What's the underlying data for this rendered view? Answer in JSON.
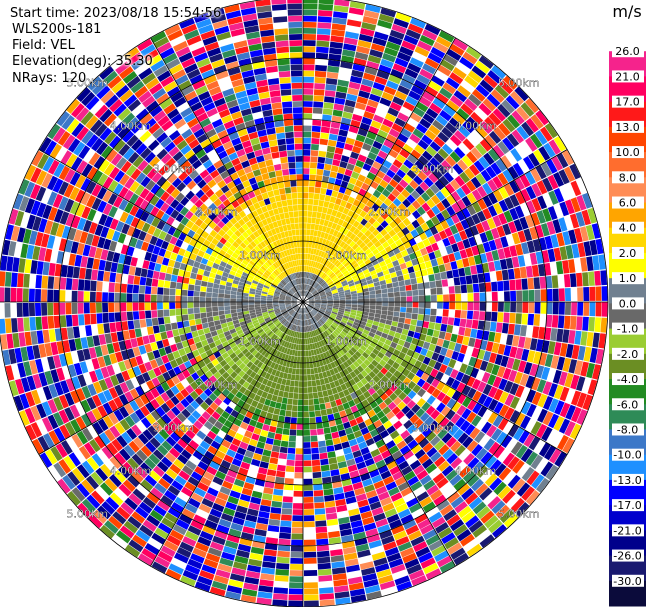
{
  "header": {
    "start_time": "Start time: 2023/08/18 15:54:56",
    "instrument": "WLS200s-181",
    "field": "Field: VEL",
    "elevation": "Elevation(deg): 35.30",
    "nrays": "NRays: 120"
  },
  "chart_data": {
    "type": "ppi",
    "field": "VEL",
    "nrays": 120,
    "max_range_km": 5.0,
    "range_rings_km": [
      1.0,
      2.0,
      3.0,
      4.0,
      5.0
    ],
    "ring_labels": [
      "1.00km",
      "2.00km",
      "3.00km",
      "4.00km",
      "5.00km"
    ],
    "spokes_deg": [
      0,
      30,
      60,
      90,
      120,
      150,
      180,
      210,
      240,
      270,
      300,
      330
    ],
    "qualitative_pattern": {
      "north_near_range": "positive (yellow/orange, ~1 to 6 m/s)",
      "south_near_range": "negative (green, ~-1 to -8 m/s)",
      "center": "near zero (grey)",
      "far_range": "noise (random colors)"
    },
    "colorbar": {
      "unit": "m/s",
      "tick_labels": [
        "26.0",
        "21.0",
        "17.0",
        "13.0",
        "10.0",
        "8.0",
        "6.0",
        "4.0",
        "2.0",
        "1.0",
        "0.0",
        "-1.0",
        "-2.0",
        "-4.0",
        "-6.0",
        "-8.0",
        "-10.0",
        "-13.0",
        "-17.0",
        "-21.0",
        "-26.0",
        "-30.0"
      ],
      "colors": [
        "#ffffff",
        "#f5238c",
        "#ff0060",
        "#ff1919",
        "#ff4500",
        "#ff6d2e",
        "#ff8c55",
        "#ffa500",
        "#ffd700",
        "#ffff00",
        "#708090",
        "#696969",
        "#9acd32",
        "#6b8e23",
        "#228b22",
        "#2e8b57",
        "#3c78c8",
        "#1e90ff",
        "#0000ff",
        "#0000cd",
        "#00008b",
        "#191970",
        "#0b0b3b"
      ]
    }
  }
}
